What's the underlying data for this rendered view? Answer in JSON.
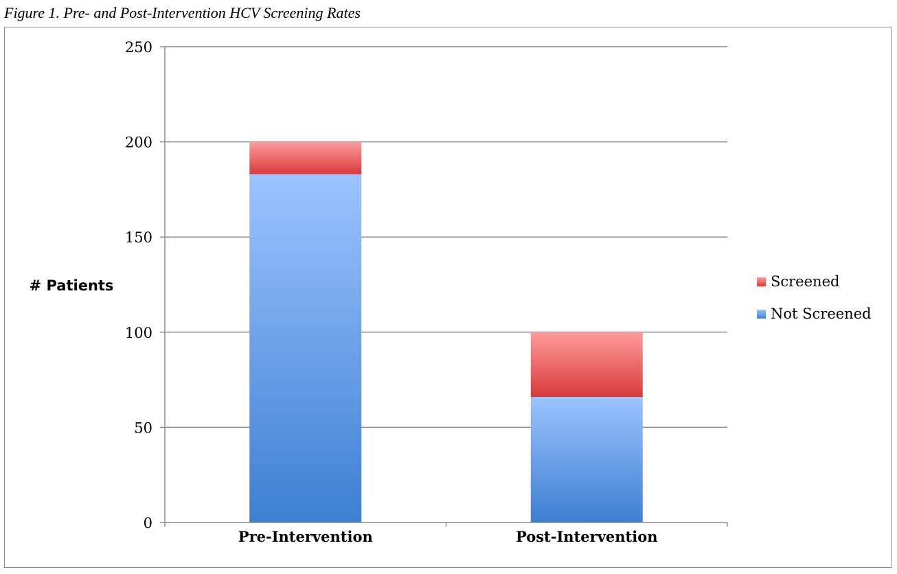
{
  "caption": "Figure 1. Pre- and Post-Intervention HCV Screening Rates",
  "chart_data": {
    "type": "bar",
    "stacked": true,
    "categories": [
      "Pre-Intervention",
      "Post-Intervention"
    ],
    "series": [
      {
        "name": "Not Screened",
        "values": [
          183,
          66
        ],
        "color": "#7aaaf0"
      },
      {
        "name": "Screened",
        "values": [
          17,
          34
        ],
        "color": "#f07d7d"
      }
    ],
    "title": "",
    "xlabel": "",
    "ylabel": "# Patients",
    "ylim": [
      0,
      250
    ],
    "yticks": [
      0,
      50,
      100,
      150,
      200,
      250
    ],
    "grid": true,
    "legend": "right"
  }
}
